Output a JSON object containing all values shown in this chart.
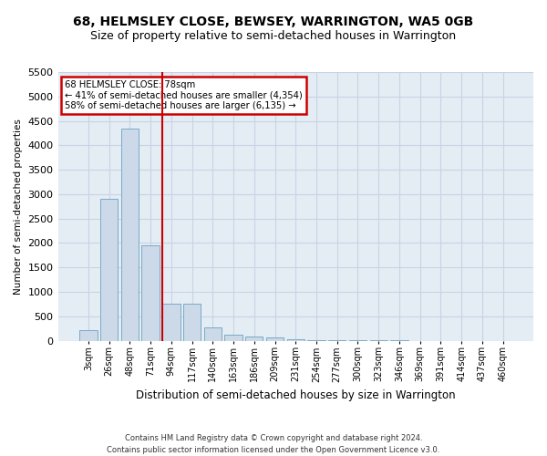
{
  "title": "68, HELMSLEY CLOSE, BEWSEY, WARRINGTON, WA5 0GB",
  "subtitle": "Size of property relative to semi-detached houses in Warrington",
  "xlabel": "Distribution of semi-detached houses by size in Warrington",
  "ylabel": "Number of semi-detached properties",
  "footer_line1": "Contains HM Land Registry data © Crown copyright and database right 2024.",
  "footer_line2": "Contains public sector information licensed under the Open Government Licence v3.0.",
  "bar_labels": [
    "3sqm",
    "26sqm",
    "48sqm",
    "71sqm",
    "94sqm",
    "117sqm",
    "140sqm",
    "163sqm",
    "186sqm",
    "209sqm",
    "231sqm",
    "254sqm",
    "277sqm",
    "300sqm",
    "323sqm",
    "346sqm",
    "369sqm",
    "391sqm",
    "414sqm",
    "437sqm",
    "460sqm"
  ],
  "bar_values": [
    220,
    2900,
    4350,
    1950,
    750,
    750,
    270,
    130,
    90,
    60,
    30,
    10,
    10,
    5,
    5,
    3,
    2,
    2,
    1,
    1,
    0
  ],
  "bar_color": "#ccd9e8",
  "bar_edge_color": "#7aaac8",
  "vline_x": 3.57,
  "vline_color": "#cc0000",
  "annotation_title": "68 HELMSLEY CLOSE: 78sqm",
  "annotation_line1": "← 41% of semi-detached houses are smaller (4,354)",
  "annotation_line2": "58% of semi-detached houses are larger (6,135) →",
  "annotation_box_color": "#ffffff",
  "annotation_box_edge": "#cc0000",
  "ylim": [
    0,
    5500
  ],
  "yticks": [
    0,
    500,
    1000,
    1500,
    2000,
    2500,
    3000,
    3500,
    4000,
    4500,
    5000,
    5500
  ],
  "grid_color": "#c8d4e4",
  "bg_color": "#e4ecf4",
  "title_fontsize": 10,
  "subtitle_fontsize": 9,
  "bar_width": 0.85
}
